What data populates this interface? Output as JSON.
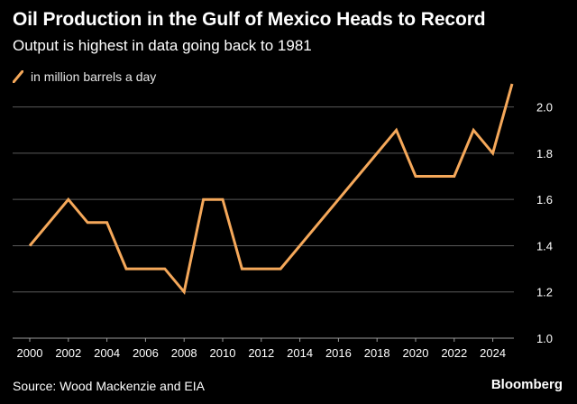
{
  "colors": {
    "background": "#000000",
    "line": "#F5A85A",
    "grid": "#5a5a5a",
    "text": "#ffffff"
  },
  "chart_data": {
    "type": "line",
    "title": "Oil Production in the Gulf of Mexico Heads to Record",
    "subtitle": "Output is highest in data going back to 1981",
    "legend": "in million barrels a day",
    "xlabel": "",
    "ylabel": "",
    "xlim": [
      2000,
      2025
    ],
    "ylim": [
      1.0,
      2.1
    ],
    "x_ticks": [
      2000,
      2002,
      2004,
      2006,
      2008,
      2010,
      2012,
      2014,
      2016,
      2018,
      2020,
      2022,
      2024
    ],
    "y_ticks": [
      1.0,
      1.2,
      1.4,
      1.6,
      1.8,
      2.0
    ],
    "y_tick_labels": [
      "1.0",
      "1.2",
      "1.4",
      "1.6",
      "1.8",
      "2.0"
    ],
    "grid": true,
    "series": [
      {
        "name": "in million barrels a day",
        "x": [
          2000,
          2002,
          2003,
          2004,
          2005,
          2006,
          2007,
          2008,
          2009,
          2010,
          2011,
          2012,
          2013,
          2019,
          2020,
          2021,
          2022,
          2023,
          2024,
          2025
        ],
        "values": [
          1.4,
          1.6,
          1.5,
          1.5,
          1.3,
          1.3,
          1.3,
          1.2,
          1.6,
          1.6,
          1.3,
          1.3,
          1.3,
          1.9,
          1.7,
          1.7,
          1.7,
          1.9,
          1.8,
          2.1
        ]
      }
    ]
  },
  "footer": {
    "source": "Source: Wood Mackenzie and EIA",
    "brand": "Bloomberg"
  }
}
